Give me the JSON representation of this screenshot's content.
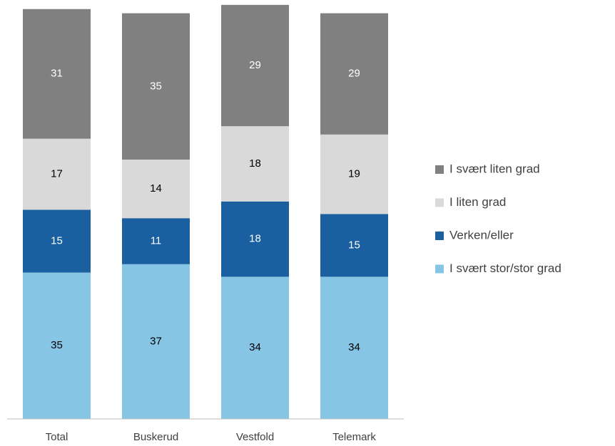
{
  "chart_data": {
    "type": "stacked_bar",
    "categories": [
      "Total",
      "Buskerud",
      "Vestfold",
      "Telemark"
    ],
    "series": [
      {
        "name": "I svært stor/stor grad",
        "color": "#87c5e5",
        "values": [
          35,
          37,
          34,
          34
        ]
      },
      {
        "name": "Verken/eller",
        "color": "#1a5fa0",
        "values": [
          15,
          11,
          18,
          15
        ]
      },
      {
        "name": "I liten grad",
        "color": "#d9d9d9",
        "values": [
          17,
          14,
          18,
          19
        ]
      },
      {
        "name": "I svært liten grad",
        "color": "#808080",
        "values": [
          31,
          35,
          29,
          29
        ]
      }
    ],
    "ylim": [
      0,
      100
    ],
    "legend": "right"
  }
}
